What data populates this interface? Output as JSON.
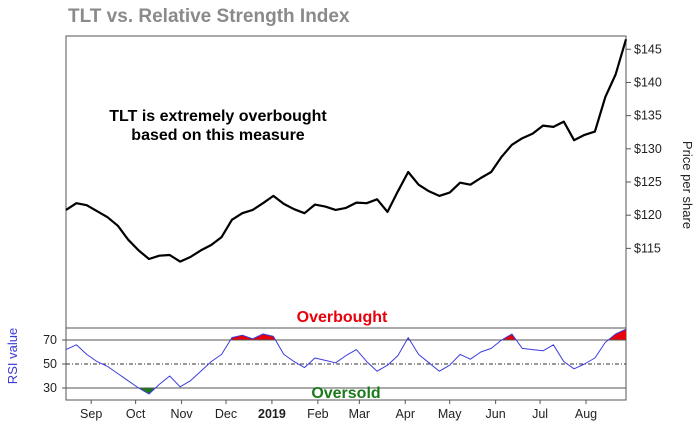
{
  "chart_data": {
    "type": "line",
    "title": "TLT vs. Relative Strength Index",
    "colors": {
      "price_line": "#000000",
      "rsi_line": "#3c3cdc",
      "overbought_fill": "#e8000b",
      "oversold_fill": "#1a7a1a",
      "overbought_text": "#e8000b",
      "oversold_text": "#1a7a1a",
      "rsi_axis_label": "#3b3bd6",
      "title": "#8a8a8a"
    },
    "x_tick_labels": [
      {
        "label": "Sep",
        "date": "2018-09-01",
        "bold": false
      },
      {
        "label": "Oct",
        "date": "2018-10-01",
        "bold": false
      },
      {
        "label": "Nov",
        "date": "2018-11-01",
        "bold": false
      },
      {
        "label": "Dec",
        "date": "2018-12-01",
        "bold": false
      },
      {
        "label": "2019",
        "date": "2019-01-01",
        "bold": true
      },
      {
        "label": "Feb",
        "date": "2019-02-01",
        "bold": false
      },
      {
        "label": "Mar",
        "date": "2019-03-01",
        "bold": false
      },
      {
        "label": "Apr",
        "date": "2019-04-01",
        "bold": false
      },
      {
        "label": "May",
        "date": "2019-05-01",
        "bold": false
      },
      {
        "label": "Jun",
        "date": "2019-06-01",
        "bold": false
      },
      {
        "label": "Jul",
        "date": "2019-07-01",
        "bold": false
      },
      {
        "label": "Aug",
        "date": "2019-08-01",
        "bold": false
      }
    ],
    "x_range": [
      "2018-08-15",
      "2019-08-28"
    ],
    "price_panel": {
      "ylabel": "Price per share",
      "y_range": [
        103,
        147
      ],
      "y_ticks": [
        115,
        120,
        125,
        130,
        135,
        140,
        145
      ],
      "y_tick_labels": [
        "$115",
        "$120",
        "$125",
        "$130",
        "$135",
        "$140",
        "$145"
      ],
      "series": {
        "x": [
          "2018-08-15",
          "2018-08-22",
          "2018-08-29",
          "2018-09-05",
          "2018-09-12",
          "2018-09-19",
          "2018-09-26",
          "2018-10-03",
          "2018-10-10",
          "2018-10-17",
          "2018-10-24",
          "2018-10-31",
          "2018-11-07",
          "2018-11-14",
          "2018-11-21",
          "2018-11-28",
          "2018-12-05",
          "2018-12-12",
          "2018-12-19",
          "2018-12-26",
          "2019-01-02",
          "2019-01-09",
          "2019-01-16",
          "2019-01-23",
          "2019-01-30",
          "2019-02-06",
          "2019-02-13",
          "2019-02-20",
          "2019-02-27",
          "2019-03-06",
          "2019-03-13",
          "2019-03-20",
          "2019-03-27",
          "2019-04-03",
          "2019-04-10",
          "2019-04-17",
          "2019-04-24",
          "2019-05-01",
          "2019-05-08",
          "2019-05-15",
          "2019-05-22",
          "2019-05-29",
          "2019-06-05",
          "2019-06-12",
          "2019-06-19",
          "2019-06-26",
          "2019-07-03",
          "2019-07-10",
          "2019-07-17",
          "2019-07-24",
          "2019-07-31",
          "2019-08-07",
          "2019-08-14",
          "2019-08-21",
          "2019-08-28"
        ],
        "y": [
          120.8,
          121.8,
          121.5,
          120.6,
          119.7,
          118.4,
          116.3,
          114.7,
          113.4,
          113.9,
          114.0,
          113.0,
          113.7,
          114.7,
          115.5,
          116.7,
          119.3,
          120.3,
          120.8,
          121.8,
          122.9,
          121.7,
          120.9,
          120.3,
          121.6,
          121.3,
          120.8,
          121.1,
          121.9,
          121.8,
          122.4,
          120.5,
          123.6,
          126.5,
          124.6,
          123.6,
          122.9,
          123.4,
          124.9,
          124.6,
          125.6,
          126.5,
          128.8,
          130.6,
          131.6,
          132.3,
          133.5,
          133.3,
          134.1,
          131.3,
          132.1,
          132.6,
          137.8,
          141.2,
          146.5
        ]
      }
    },
    "rsi_panel": {
      "ylabel": "RSI value",
      "y_range": [
        20,
        80
      ],
      "y_ticks": [
        30,
        50,
        70
      ],
      "y_tick_labels": [
        "30",
        "50",
        "70"
      ],
      "overbought_level": 70,
      "midline": 50,
      "oversold_level": 30,
      "series": {
        "x": [
          "2018-08-15",
          "2018-08-22",
          "2018-08-29",
          "2018-09-05",
          "2018-09-12",
          "2018-09-19",
          "2018-09-26",
          "2018-10-03",
          "2018-10-10",
          "2018-10-17",
          "2018-10-24",
          "2018-10-31",
          "2018-11-07",
          "2018-11-14",
          "2018-11-21",
          "2018-11-28",
          "2018-12-05",
          "2018-12-12",
          "2018-12-19",
          "2018-12-26",
          "2019-01-02",
          "2019-01-09",
          "2019-01-16",
          "2019-01-23",
          "2019-01-30",
          "2019-02-06",
          "2019-02-13",
          "2019-02-20",
          "2019-02-27",
          "2019-03-06",
          "2019-03-13",
          "2019-03-20",
          "2019-03-27",
          "2019-04-03",
          "2019-04-10",
          "2019-04-17",
          "2019-04-24",
          "2019-05-01",
          "2019-05-08",
          "2019-05-15",
          "2019-05-22",
          "2019-05-29",
          "2019-06-05",
          "2019-06-12",
          "2019-06-19",
          "2019-06-26",
          "2019-07-03",
          "2019-07-10",
          "2019-07-17",
          "2019-07-24",
          "2019-07-31",
          "2019-08-07",
          "2019-08-14",
          "2019-08-21",
          "2019-08-28"
        ],
        "y": [
          62,
          66,
          58,
          52,
          48,
          42,
          36,
          30,
          25,
          33,
          40,
          31,
          36,
          44,
          52,
          58,
          72,
          74,
          71,
          75,
          73,
          58,
          52,
          47,
          55,
          53,
          51,
          57,
          62,
          52,
          44,
          49,
          57,
          72,
          58,
          51,
          44,
          49,
          58,
          54,
          60,
          63,
          70,
          75,
          63,
          62,
          61,
          66,
          52,
          46,
          50,
          55,
          68,
          75,
          79
        ]
      }
    },
    "annotations": {
      "main": [
        "TLT is extremely overbought",
        "based on this measure"
      ],
      "overbought_label": "Overbought",
      "oversold_label": "Oversold"
    }
  }
}
